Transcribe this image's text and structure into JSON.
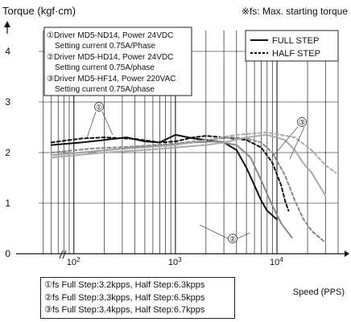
{
  "chart_data": {
    "type": "line",
    "ylabel": "Torque (kgf·cm)",
    "xlabel": "Speed (PPS)",
    "note": "※fs: Max. starting torque",
    "xscale": "log",
    "xlim": [
      45,
      40000
    ],
    "ylim": [
      0,
      4
    ],
    "y_ticks": [
      "0",
      "1",
      "2",
      "3",
      "4"
    ],
    "x_ticks": [
      {
        "value": 100,
        "label": "10",
        "exp": "2"
      },
      {
        "value": 1000,
        "label": "10",
        "exp": "3"
      },
      {
        "value": 10000,
        "label": "10",
        "exp": "4"
      }
    ],
    "legend": {
      "placement": "top-right",
      "entries": [
        {
          "label": "FULL STEP",
          "style": "solid"
        },
        {
          "label": "HALF STEP",
          "style": "dashed"
        }
      ]
    },
    "drivers": [
      "①Driver MD5-ND14, Power 24VDC",
      "Setting current 0.75A/Phase",
      "②Driver MD5-HD14, Power 24VDC",
      "Setting current 0.75A/phase",
      "③Driver MD5-HF14, Power 220VAC",
      "Setting current 0.75A/phase"
    ],
    "callouts": [
      "①",
      "②",
      "③"
    ],
    "series": [
      {
        "driver": "①",
        "mode": "full",
        "style": "solid",
        "color": "#111111",
        "x": [
          60,
          120,
          200,
          330,
          500,
          700,
          1000,
          1500,
          2000,
          3000,
          4000,
          5000,
          6000,
          7000,
          8000,
          10000
        ],
        "y": [
          2.15,
          2.2,
          2.25,
          2.3,
          2.22,
          2.2,
          2.35,
          2.28,
          2.25,
          2.2,
          2.05,
          1.7,
          1.35,
          1.05,
          0.85,
          0.68
        ]
      },
      {
        "driver": "①",
        "mode": "half",
        "style": "dashed",
        "color": "#111111",
        "x": [
          60,
          120,
          200,
          400,
          700,
          1000,
          1500,
          2000,
          3000,
          5000,
          7000,
          9000,
          11000,
          12000,
          13000
        ],
        "y": [
          2.2,
          2.28,
          2.3,
          2.27,
          2.2,
          2.22,
          2.3,
          2.33,
          2.3,
          2.25,
          2.1,
          1.8,
          1.35,
          1.05,
          0.85
        ]
      },
      {
        "driver": "②",
        "mode": "full",
        "style": "solid",
        "color": "#888888",
        "x": [
          60,
          150,
          400,
          900,
          1500,
          2500,
          4000,
          5500,
          7000,
          9000,
          11000,
          14000
        ],
        "y": [
          1.95,
          2.02,
          2.1,
          2.15,
          2.2,
          2.22,
          2.15,
          1.9,
          1.45,
          0.95,
          0.6,
          0.32
        ]
      },
      {
        "driver": "②",
        "mode": "half",
        "style": "dashed",
        "color": "#888888",
        "x": [
          60,
          150,
          400,
          1000,
          2000,
          3500,
          5000,
          7000,
          9000,
          12000,
          15000,
          18000,
          22000,
          30000
        ],
        "y": [
          2.0,
          2.08,
          2.12,
          2.18,
          2.25,
          2.3,
          2.28,
          2.2,
          2.0,
          1.55,
          1.05,
          0.7,
          0.45,
          0.22
        ]
      },
      {
        "driver": "③",
        "mode": "full",
        "style": "solid",
        "color": "#aaaaaa",
        "x": [
          60,
          200,
          500,
          1000,
          2000,
          3000,
          5000,
          8000,
          12000,
          15000,
          18000,
          22000,
          30000
        ],
        "y": [
          1.9,
          2.0,
          2.05,
          2.1,
          2.15,
          2.2,
          2.3,
          2.35,
          2.25,
          2.05,
          1.8,
          1.6,
          1.15
        ]
      },
      {
        "driver": "③",
        "mode": "half",
        "style": "dashed",
        "color": "#aaaaaa",
        "x": [
          60,
          200,
          500,
          1000,
          2000,
          4000,
          8000,
          15000,
          22000,
          30000,
          38000
        ],
        "y": [
          1.95,
          2.05,
          2.1,
          2.15,
          2.25,
          2.35,
          2.4,
          2.3,
          2.05,
          1.75,
          1.6
        ]
      }
    ],
    "fs_notes": [
      "①fs Full Step:3.2kpps, Half Step:6.3kpps",
      "②fs Full Step:3.3kpps, Half Step:6.5kpps",
      "③fs Full Step:3.4kpps, Half Step:6.7kpps"
    ]
  }
}
